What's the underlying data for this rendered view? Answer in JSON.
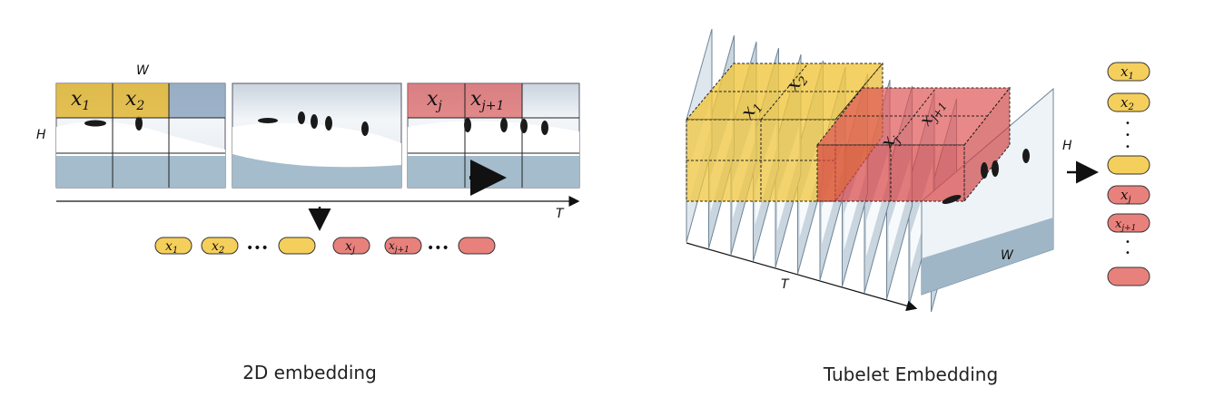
{
  "left_panel": {
    "axis": {
      "w": "W",
      "h": "H",
      "t": "T"
    },
    "patches": {
      "x1": "x",
      "x1_sub": "1",
      "x2": "x",
      "x2_sub": "2",
      "xj": "x",
      "xj_sub": "j",
      "xj1": "x",
      "xj1_sub": "j+1"
    },
    "tokens": [
      {
        "base": "x",
        "sub": "1",
        "color": "yellow"
      },
      {
        "base": "x",
        "sub": "2",
        "color": "yellow"
      },
      {
        "base": "",
        "sub": "",
        "color": "yellow"
      },
      {
        "base": "x",
        "sub": "j",
        "color": "red"
      },
      {
        "base": "x",
        "sub": "j+1",
        "color": "red"
      },
      {
        "base": "",
        "sub": "",
        "color": "red"
      }
    ],
    "dots": "•••",
    "caption": "2D embedding"
  },
  "right_panel": {
    "axis": {
      "w": "W",
      "h": "H",
      "t": "T"
    },
    "tubes": {
      "x1": "x",
      "x1_sub": "1",
      "x2": "x",
      "x2_sub": "2",
      "xj": "x",
      "xj_sub": "j",
      "xj1": "x",
      "xj1_sub": "j+1"
    },
    "tokens": [
      {
        "base": "x",
        "sub": "1",
        "color": "yellow"
      },
      {
        "base": "x",
        "sub": "2",
        "color": "yellow"
      },
      {
        "base": "",
        "sub": "",
        "color": "yellow"
      },
      {
        "base": "x",
        "sub": "j",
        "color": "red"
      },
      {
        "base": "x",
        "sub": "j+1",
        "color": "red"
      },
      {
        "base": "",
        "sub": "",
        "color": "red"
      }
    ],
    "dots": "•",
    "caption": "Tubelet Embedding"
  },
  "colors": {
    "yellow_fill": "#f5cf5b",
    "yellow_stroke": "#333333",
    "red_fill": "#e8817c",
    "red_stroke": "#333333",
    "ice": "#eef2f6",
    "water": "#9fb6c6",
    "frame_stroke": "#6f8596",
    "patch_yellow": "#e2b634",
    "patch_red": "#dd5b5b"
  }
}
